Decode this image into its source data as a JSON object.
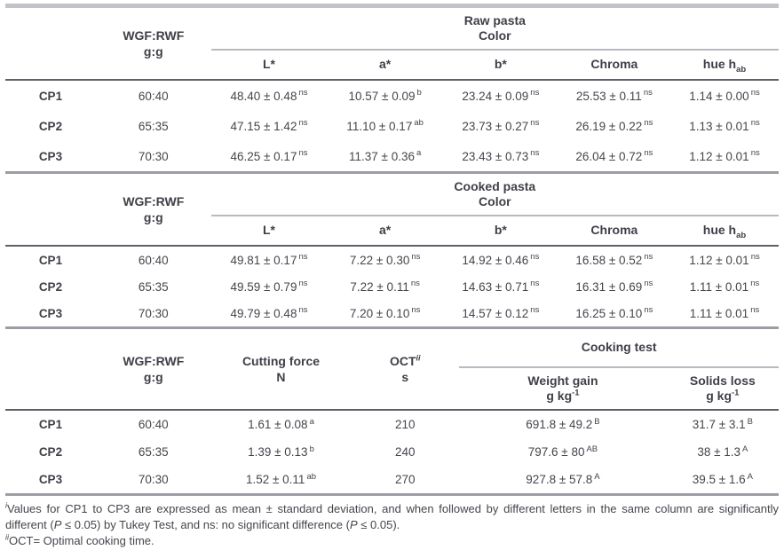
{
  "page": {
    "background": "#ffffff",
    "text_color": "#45454d",
    "top_bar_color": "#c2c2c9",
    "light_rule_color": "#b9b9c0",
    "heavy_rule_color": "#60606a",
    "section_rule_color": "#9d9da4"
  },
  "tables": [
    {
      "name": "raw-pasta-color",
      "stub_header": {
        "line1": "WGF:RWF",
        "line2": "g:g"
      },
      "spanner": {
        "line1": "Raw pasta",
        "line2": "Color"
      },
      "columns": [
        {
          "main": "L*"
        },
        {
          "main": "a*"
        },
        {
          "main": "b*"
        },
        {
          "main": "Chroma"
        },
        {
          "main": "hue h",
          "sub": "ab"
        }
      ],
      "rows": [
        {
          "sample": "CP1",
          "ratio": "60:40",
          "cells": [
            {
              "v": "48.40 ± 0.48",
              "s": "ns"
            },
            {
              "v": "10.57 ± 0.09",
              "s": "b"
            },
            {
              "v": "23.24 ± 0.09",
              "s": "ns"
            },
            {
              "v": "25.53 ± 0.11",
              "s": "ns"
            },
            {
              "v": "1.14 ± 0.00",
              "s": "ns"
            }
          ]
        },
        {
          "sample": "CP2",
          "ratio": "65:35",
          "cells": [
            {
              "v": "47.15 ± 1.42",
              "s": "ns"
            },
            {
              "v": "11.10 ± 0.17",
              "s": "ab"
            },
            {
              "v": "23.73 ± 0.27",
              "s": "ns"
            },
            {
              "v": "26.19 ± 0.22",
              "s": "ns"
            },
            {
              "v": "1.13 ± 0.01",
              "s": "ns"
            }
          ]
        },
        {
          "sample": "CP3",
          "ratio": "70:30",
          "cells": [
            {
              "v": "46.25 ± 0.17",
              "s": "ns"
            },
            {
              "v": "11.37 ± 0.36",
              "s": "a"
            },
            {
              "v": "23.43 ± 0.73",
              "s": "ns"
            },
            {
              "v": "26.04 ± 0.72",
              "s": "ns"
            },
            {
              "v": "1.12 ± 0.01",
              "s": "ns"
            }
          ]
        }
      ]
    },
    {
      "name": "cooked-pasta-color",
      "stub_header": {
        "line1": "WGF:RWF",
        "line2": "g:g"
      },
      "spanner": {
        "line1": "Cooked pasta",
        "line2": "Color"
      },
      "columns": [
        {
          "main": "L*"
        },
        {
          "main": "a*"
        },
        {
          "main": "b*"
        },
        {
          "main": "Chroma"
        },
        {
          "main": "hue h",
          "sub": "ab"
        }
      ],
      "rows": [
        {
          "sample": "CP1",
          "ratio": "60:40",
          "cells": [
            {
              "v": "49.81 ± 0.17",
              "s": "ns"
            },
            {
              "v": "7.22 ± 0.30",
              "s": "ns"
            },
            {
              "v": "14.92 ± 0.46",
              "s": "ns"
            },
            {
              "v": "16.58 ± 0.52",
              "s": "ns"
            },
            {
              "v": "1.12 ± 0.01",
              "s": "ns"
            }
          ]
        },
        {
          "sample": "CP2",
          "ratio": "65:35",
          "cells": [
            {
              "v": "49.59 ± 0.79",
              "s": "ns"
            },
            {
              "v": "7.22 ± 0.11",
              "s": "ns"
            },
            {
              "v": "14.63 ± 0.71",
              "s": "ns"
            },
            {
              "v": "16.31 ± 0.69",
              "s": "ns"
            },
            {
              "v": "1.11 ± 0.01",
              "s": "ns"
            }
          ]
        },
        {
          "sample": "CP3",
          "ratio": "70:30",
          "cells": [
            {
              "v": "49.79 ± 0.48",
              "s": "ns"
            },
            {
              "v": "7.20 ± 0.10",
              "s": "ns"
            },
            {
              "v": "14.57 ± 0.12",
              "s": "ns"
            },
            {
              "v": "16.25 ± 0.10",
              "s": "ns"
            },
            {
              "v": "1.11 ± 0.01",
              "s": "ns"
            }
          ]
        }
      ]
    },
    {
      "name": "cooking-test",
      "stub_header": {
        "line1": "WGF:RWF",
        "line2": "g:g"
      },
      "col_cutting": {
        "line1": "Cutting force",
        "line2": "N"
      },
      "col_oct": {
        "main": "OCT",
        "sup": "ii",
        "line2": "s"
      },
      "spanner": {
        "line1": "Cooking test"
      },
      "columns": [
        {
          "line1": "Weight gain",
          "line2": "g kg",
          "line2_sup": "-1"
        },
        {
          "line1": "Solids loss",
          "line2": "g kg",
          "line2_sup": "-1"
        }
      ],
      "rows": [
        {
          "sample": "CP1",
          "ratio": "60:40",
          "cells": [
            {
              "v": "1.61 ± 0.08",
              "s": "a"
            },
            {
              "v": "210"
            },
            {
              "v": "691.8 ± 49.2",
              "s": "B"
            },
            {
              "v": "31.7 ± 3.1",
              "s": "B"
            }
          ]
        },
        {
          "sample": "CP2",
          "ratio": "65:35",
          "cells": [
            {
              "v": "1.39 ± 0.13",
              "s": "b"
            },
            {
              "v": "240"
            },
            {
              "v": "797.6 ± 80",
              "s": "AB"
            },
            {
              "v": "38 ± 1.3",
              "s": "A"
            }
          ]
        },
        {
          "sample": "CP3",
          "ratio": "70:30",
          "cells": [
            {
              "v": "1.52 ± 0.11",
              "s": "ab"
            },
            {
              "v": "270"
            },
            {
              "v": "927.8 ± 57.8",
              "s": "A"
            },
            {
              "v": "39.5 ± 1.6",
              "s": "A"
            }
          ]
        }
      ]
    }
  ],
  "footnotes": {
    "note1": {
      "marker": "i",
      "seg1": "Values for CP1 to CP3 are expressed as mean ± standard deviation, and when followed by different letters in the same column are significantly different (",
      "p1": "P",
      "seg2": " ≤ 0.05) by Tukey Test, and ns: no significant difference (",
      "p2": "P",
      "seg3": " ≤ 0.05)."
    },
    "note2": {
      "marker": "ii",
      "text": "OCT= Optimal cooking time."
    }
  }
}
